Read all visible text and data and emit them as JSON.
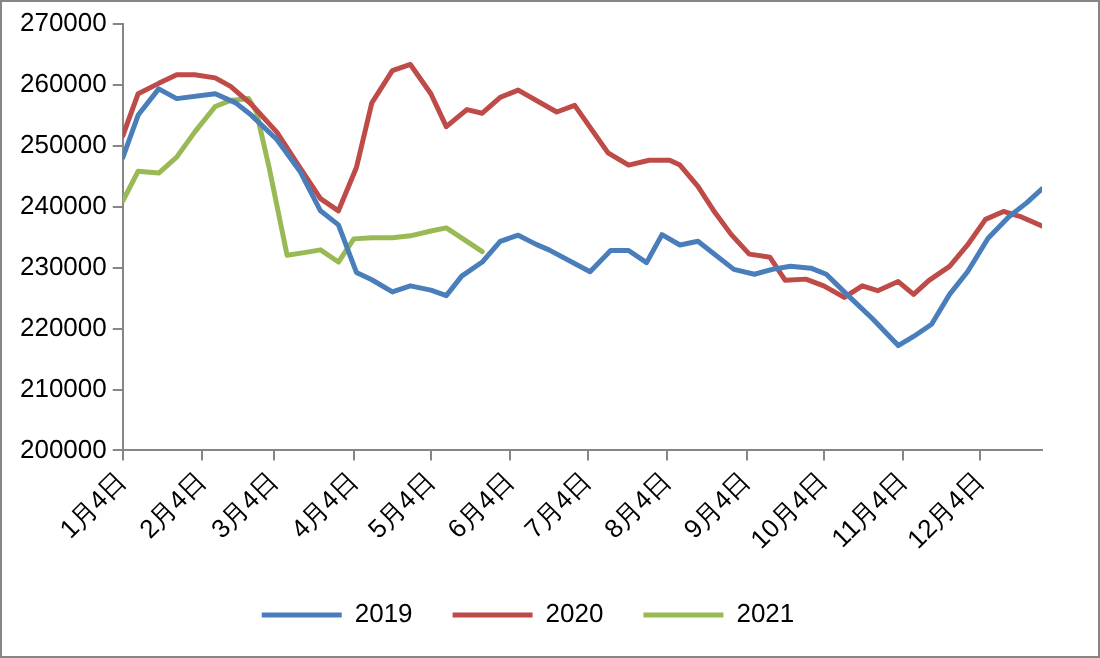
{
  "chart_data": {
    "type": "line",
    "xlim": [
      "--01-04",
      "--12-28"
    ],
    "xticks": [
      {
        "value": "--01-04",
        "label": "1月4日"
      },
      {
        "value": "--02-04",
        "label": "2月4日"
      },
      {
        "value": "--03-04",
        "label": "3月4日"
      },
      {
        "value": "--04-04",
        "label": "4月4日"
      },
      {
        "value": "--05-04",
        "label": "5月4日"
      },
      {
        "value": "--06-04",
        "label": "6月4日"
      },
      {
        "value": "--07-04",
        "label": "7月4日"
      },
      {
        "value": "--08-04",
        "label": "8月4日"
      },
      {
        "value": "--09-04",
        "label": "9月4日"
      },
      {
        "value": "--10-04",
        "label": "10月4日"
      },
      {
        "value": "--11-04",
        "label": "11月4日"
      },
      {
        "value": "--12-04",
        "label": "12月4日"
      }
    ],
    "ylim": [
      200000,
      270000
    ],
    "yticks": [
      200000,
      210000,
      220000,
      230000,
      240000,
      250000,
      260000,
      270000
    ],
    "grid": false,
    "legend": "bottom",
    "marker": "none",
    "line_style": "solid",
    "series": [
      {
        "name": "2019",
        "color": "#4a7ebb",
        "x": [
          "--01-04",
          "--01-10",
          "--01-18",
          "--01-25",
          "--02-09",
          "--02-17",
          "--02-23",
          "--03-05",
          "--03-14",
          "--03-22",
          "--03-29",
          "--04-05",
          "--04-11",
          "--04-19",
          "--04-26",
          "--05-04",
          "--05-10",
          "--05-16",
          "--05-24",
          "--05-31",
          "--06-07",
          "--06-14",
          "--06-19",
          "--07-05",
          "--07-13",
          "--07-20",
          "--07-27",
          "--08-02",
          "--08-09",
          "--08-16",
          "--08-30",
          "--09-07",
          "--09-14",
          "--09-21",
          "--09-29",
          "--10-05",
          "--10-13",
          "--10-23",
          "--11-02",
          "--11-08",
          "--11-15",
          "--11-22",
          "--11-29",
          "--12-07",
          "--12-15",
          "--12-22",
          "--12-28"
        ],
        "values": [
          248000,
          255000,
          259300,
          257700,
          258500,
          257000,
          255000,
          251000,
          245800,
          239300,
          237000,
          229200,
          228000,
          226000,
          227000,
          226300,
          225400,
          228600,
          230900,
          234300,
          235300,
          233800,
          232900,
          229300,
          232800,
          232800,
          230800,
          235400,
          233700,
          234300,
          229700,
          228900,
          229700,
          230200,
          229900,
          228900,
          225600,
          221600,
          217200,
          218700,
          220700,
          225600,
          229300,
          234800,
          238300,
          240600,
          242900
        ]
      },
      {
        "name": "2020",
        "color": "#be4b48",
        "x": [
          "--01-04",
          "--01-10",
          "--01-18",
          "--01-25",
          "--02-01",
          "--02-09",
          "--02-15",
          "--02-23",
          "--03-05",
          "--03-14",
          "--03-22",
          "--03-29",
          "--04-05",
          "--04-11",
          "--04-19",
          "--04-26",
          "--05-04",
          "--05-10",
          "--05-18",
          "--05-24",
          "--05-31",
          "--06-07",
          "--06-22",
          "--06-29",
          "--07-07",
          "--07-12",
          "--07-20",
          "--07-28",
          "--08-05",
          "--08-09",
          "--08-16",
          "--08-22",
          "--08-29",
          "--09-05",
          "--09-13",
          "--09-19",
          "--09-27",
          "--10-04",
          "--10-12",
          "--10-19",
          "--10-25",
          "--11-02",
          "--11-08",
          "--11-14",
          "--11-22",
          "--11-29",
          "--12-06",
          "--12-13",
          "--12-20",
          "--12-28"
        ],
        "values": [
          251600,
          258500,
          260200,
          261600,
          261600,
          261100,
          259700,
          256800,
          252200,
          246400,
          241300,
          239300,
          246400,
          257000,
          262300,
          263300,
          258500,
          253100,
          255900,
          255300,
          257900,
          259100,
          255500,
          256600,
          251800,
          248800,
          246800,
          247600,
          247600,
          246800,
          243300,
          239400,
          235400,
          232200,
          231700,
          227900,
          228100,
          227000,
          225100,
          227000,
          226200,
          227700,
          225600,
          227900,
          230200,
          233700,
          237900,
          239200,
          238300,
          236800
        ]
      },
      {
        "name": "2021",
        "color": "#98b954",
        "x": [
          "--01-04",
          "--01-10",
          "--01-18",
          "--01-25",
          "--02-01",
          "--02-09",
          "--02-15",
          "--02-22",
          "--02-25",
          "--03-02",
          "--03-09",
          "--03-15",
          "--03-22",
          "--03-29",
          "--04-04",
          "--04-11",
          "--04-19",
          "--04-26",
          "--05-04",
          "--05-10",
          "--05-18",
          "--05-24"
        ],
        "values": [
          240900,
          245800,
          245500,
          248100,
          252200,
          256400,
          257400,
          257700,
          255600,
          246400,
          232000,
          232400,
          232900,
          230900,
          234700,
          234900,
          234900,
          235200,
          236000,
          236500,
          234300,
          232600
        ]
      }
    ]
  }
}
